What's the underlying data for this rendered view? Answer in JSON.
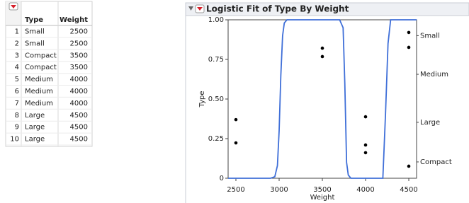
{
  "table": {
    "headers": [
      "Type",
      "Weight"
    ],
    "rows": [
      [
        1,
        "Small",
        2500
      ],
      [
        2,
        "Small",
        2500
      ],
      [
        3,
        "Compact",
        3500
      ],
      [
        4,
        "Compact",
        3500
      ],
      [
        5,
        "Medium",
        4000
      ],
      [
        6,
        "Medium",
        4000
      ],
      [
        7,
        "Medium",
        4000
      ],
      [
        8,
        "Large",
        4500
      ],
      [
        9,
        "Large",
        4500
      ],
      [
        10,
        "Large",
        4500
      ]
    ]
  },
  "chart_data": {
    "type": "scatter",
    "title": "Logistic Fit of Type By Weight",
    "x_label": "Weight",
    "y_label": "Type",
    "xlim": [
      2410,
      4590
    ],
    "xticks": [
      2500,
      3000,
      3500,
      4000,
      4500
    ],
    "ylim": [
      0,
      1
    ],
    "yticks": [
      0,
      0.25,
      {
        "value": 0.5,
        "label": "0.50"
      },
      0.75,
      {
        "value": 1,
        "label": "1.00"
      }
    ],
    "y2lim": [
      0,
      1
    ],
    "y2ticks": [
      {
        "value": 0.9,
        "label": "Small"
      },
      {
        "value": 0.656,
        "label": "Medium"
      },
      {
        "value": 0.353,
        "label": "Large"
      },
      {
        "value": 0.103,
        "label": "Compact"
      }
    ],
    "points": {
      "color": "#000000",
      "x": [
        2500,
        2500,
        3500,
        3500,
        4000,
        4000,
        4000,
        4500,
        4500,
        4500
      ],
      "y": [
        0.37,
        0.223,
        0.821,
        0.768,
        0.388,
        0.21,
        0.161,
        0.92,
        0.826,
        0.076
      ]
    },
    "curve": {
      "color": "#3f6fd8",
      "x": [
        2410,
        2900,
        2950,
        2980,
        3000,
        3020,
        3040,
        3060,
        3090,
        3700,
        3740,
        3760,
        3780,
        3800,
        3830,
        4200,
        4230,
        4260,
        4290,
        4590
      ],
      "y": [
        0,
        0,
        0.01,
        0.08,
        0.3,
        0.65,
        0.9,
        0.98,
        1,
        1,
        0.95,
        0.6,
        0.1,
        0.02,
        0,
        0,
        0.4,
        0.85,
        1,
        1
      ]
    }
  }
}
